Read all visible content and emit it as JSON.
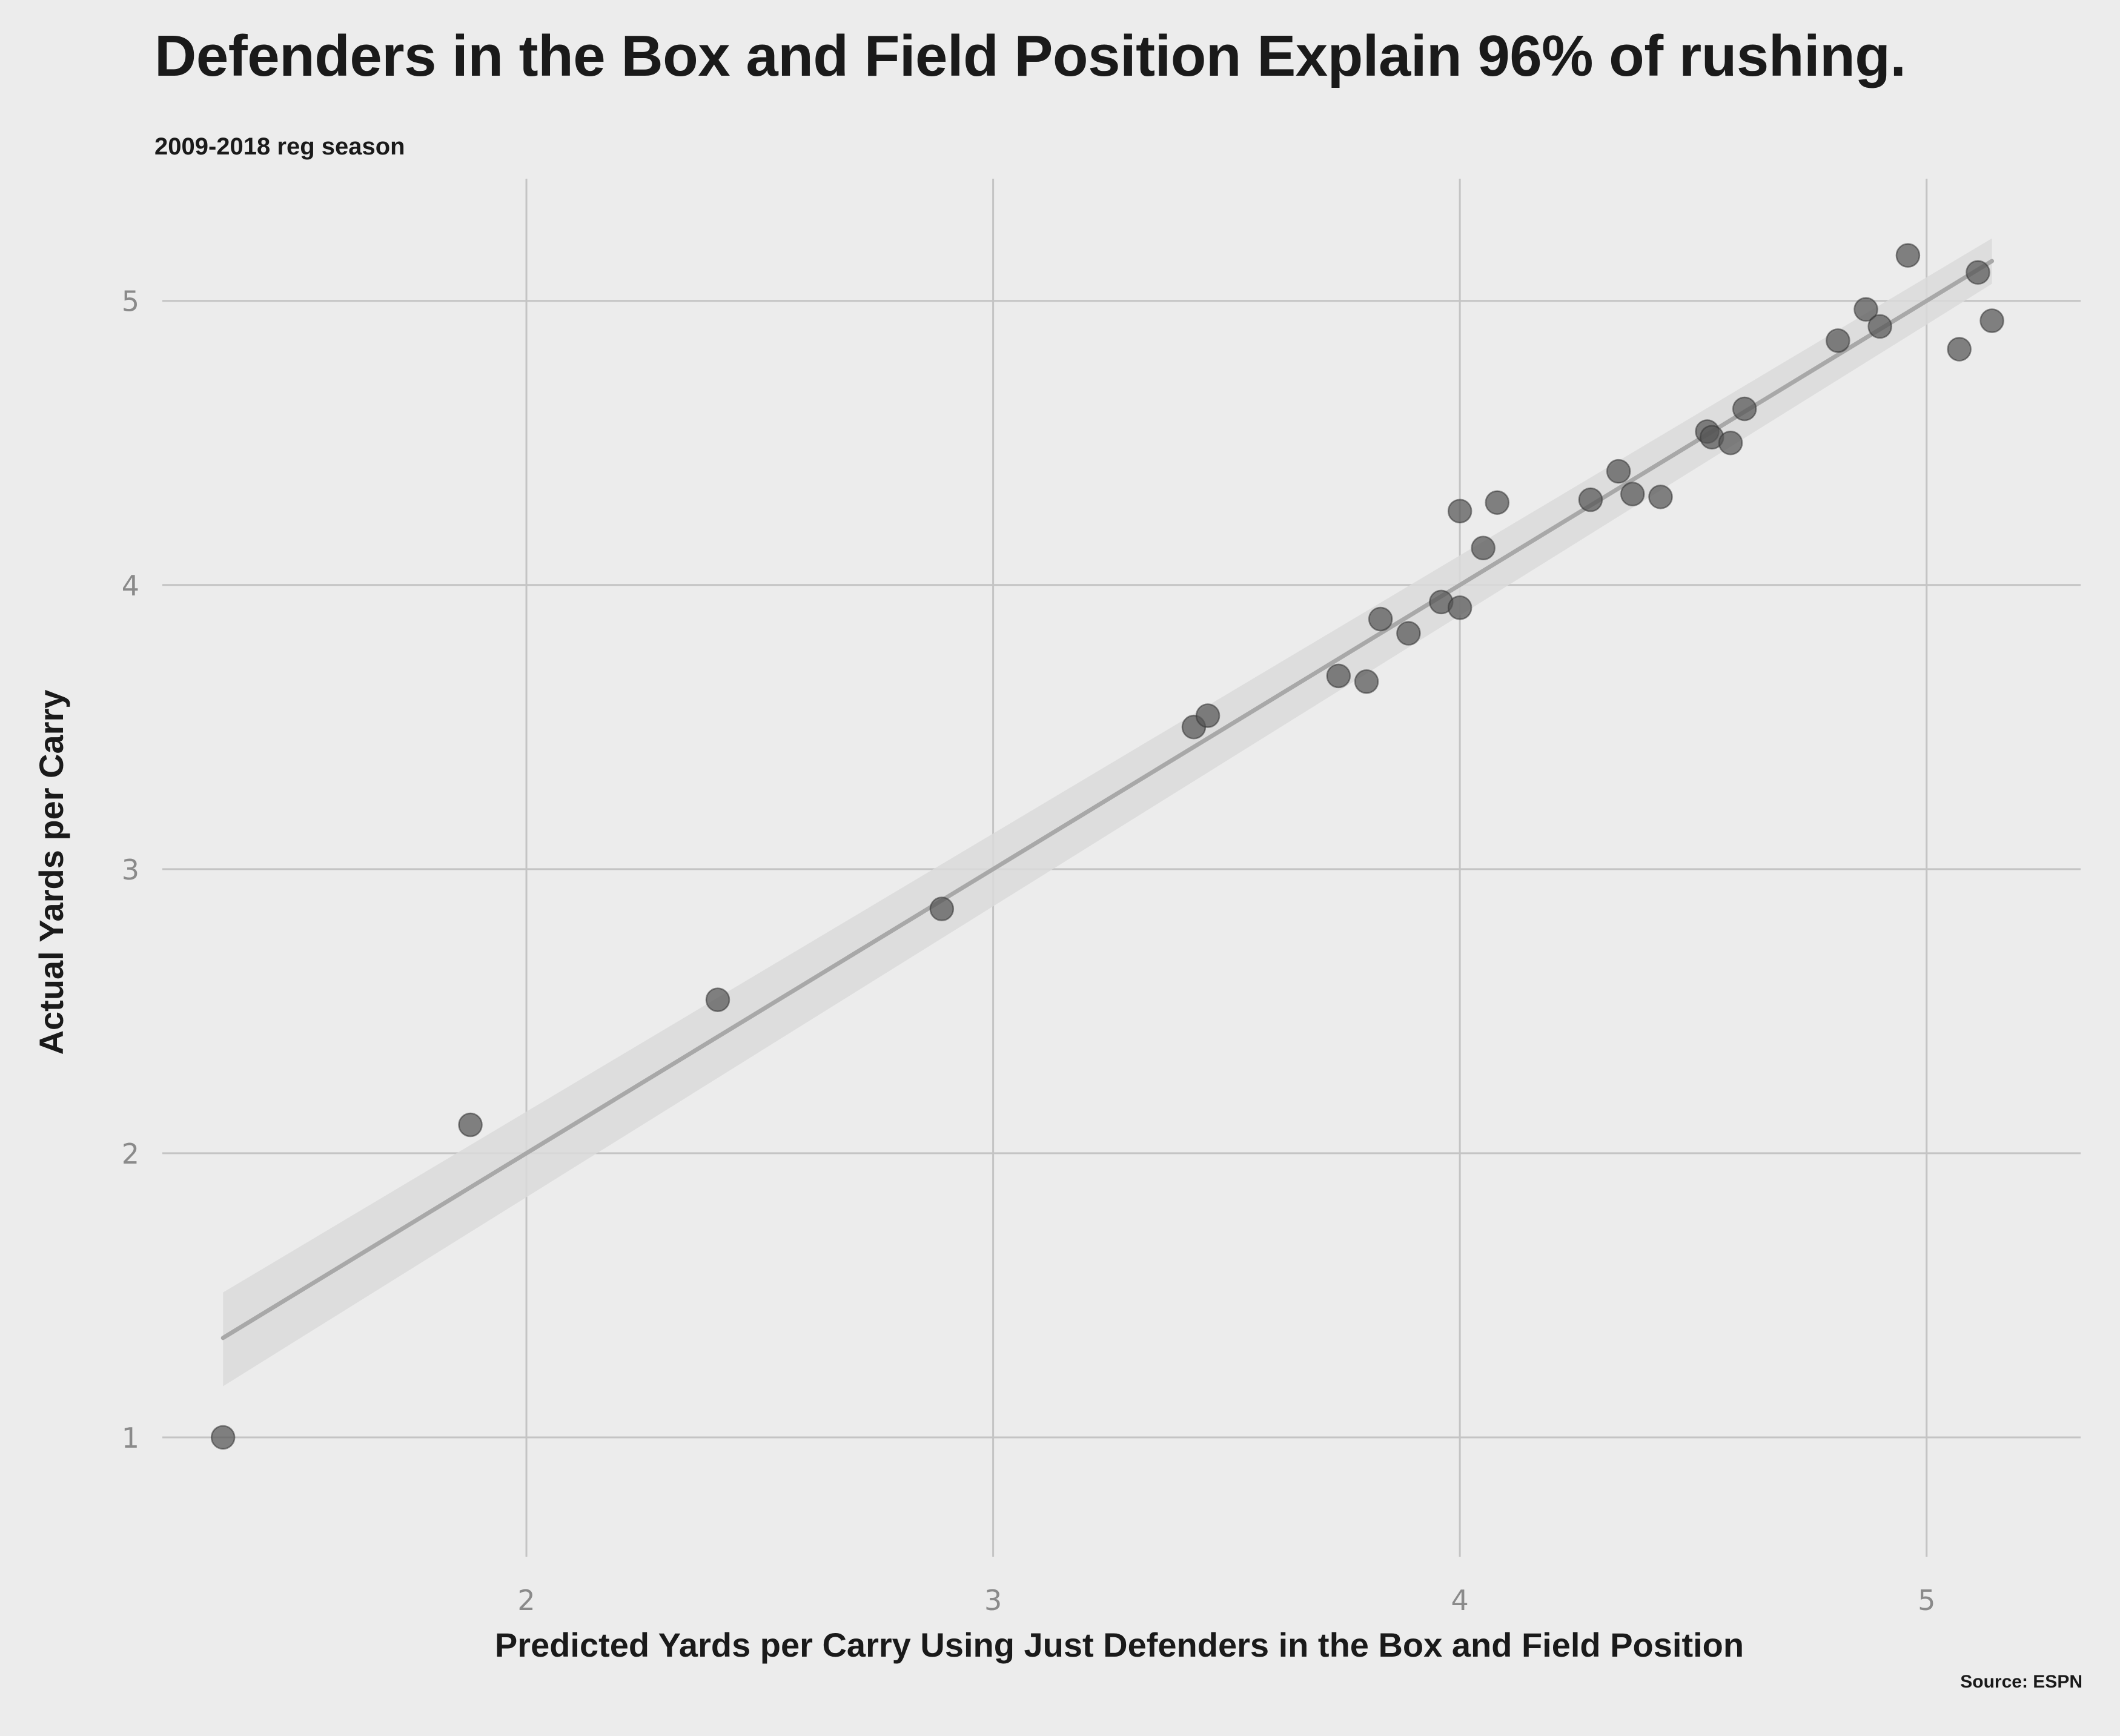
{
  "chart_data": {
    "type": "scatter",
    "title": "Defenders in the Box and Field Position Explain 96% of rushing.",
    "subtitle": "2009-2018 reg season",
    "xlabel": "Predicted Yards per Carry Using Just Defenders in the Box and Field Position",
    "ylabel": "Actual Yards per Carry",
    "source": "Source: ESPN",
    "xlim": [
      1.22,
      5.33
    ],
    "ylim": [
      0.58,
      5.43
    ],
    "xticks": [
      2,
      3,
      4,
      5
    ],
    "yticks": [
      1,
      2,
      3,
      4,
      5
    ],
    "grid": true,
    "legend": "none",
    "colors": {
      "background": "#ececec",
      "grid": "#c4c4c4",
      "points": "#555555",
      "trendline": "#a8a8a8",
      "confidence_band": "#dadada"
    },
    "trendline": {
      "type": "linear",
      "x": [
        1.35,
        5.14
      ],
      "y": [
        1.35,
        5.14
      ],
      "ci_lower": [
        1.18,
        5.06
      ],
      "ci_upper": [
        1.51,
        5.22
      ]
    },
    "points": [
      {
        "x": 1.35,
        "y": 1.0
      },
      {
        "x": 1.88,
        "y": 2.1
      },
      {
        "x": 2.41,
        "y": 2.54
      },
      {
        "x": 2.89,
        "y": 2.86
      },
      {
        "x": 3.43,
        "y": 3.5
      },
      {
        "x": 3.46,
        "y": 3.54
      },
      {
        "x": 3.74,
        "y": 3.68
      },
      {
        "x": 3.8,
        "y": 3.66
      },
      {
        "x": 3.83,
        "y": 3.88
      },
      {
        "x": 3.89,
        "y": 3.83
      },
      {
        "x": 3.96,
        "y": 3.94
      },
      {
        "x": 4.0,
        "y": 3.92
      },
      {
        "x": 4.0,
        "y": 4.26
      },
      {
        "x": 4.05,
        "y": 4.13
      },
      {
        "x": 4.08,
        "y": 4.29
      },
      {
        "x": 4.28,
        "y": 4.3
      },
      {
        "x": 4.34,
        "y": 4.4
      },
      {
        "x": 4.37,
        "y": 4.32
      },
      {
        "x": 4.43,
        "y": 4.31
      },
      {
        "x": 4.53,
        "y": 4.54
      },
      {
        "x": 4.54,
        "y": 4.52
      },
      {
        "x": 4.58,
        "y": 4.5
      },
      {
        "x": 4.61,
        "y": 4.62
      },
      {
        "x": 4.81,
        "y": 4.86
      },
      {
        "x": 4.87,
        "y": 4.97
      },
      {
        "x": 4.9,
        "y": 4.91
      },
      {
        "x": 4.96,
        "y": 5.16
      },
      {
        "x": 5.07,
        "y": 4.83
      },
      {
        "x": 5.11,
        "y": 5.1
      },
      {
        "x": 5.14,
        "y": 4.93
      }
    ]
  }
}
